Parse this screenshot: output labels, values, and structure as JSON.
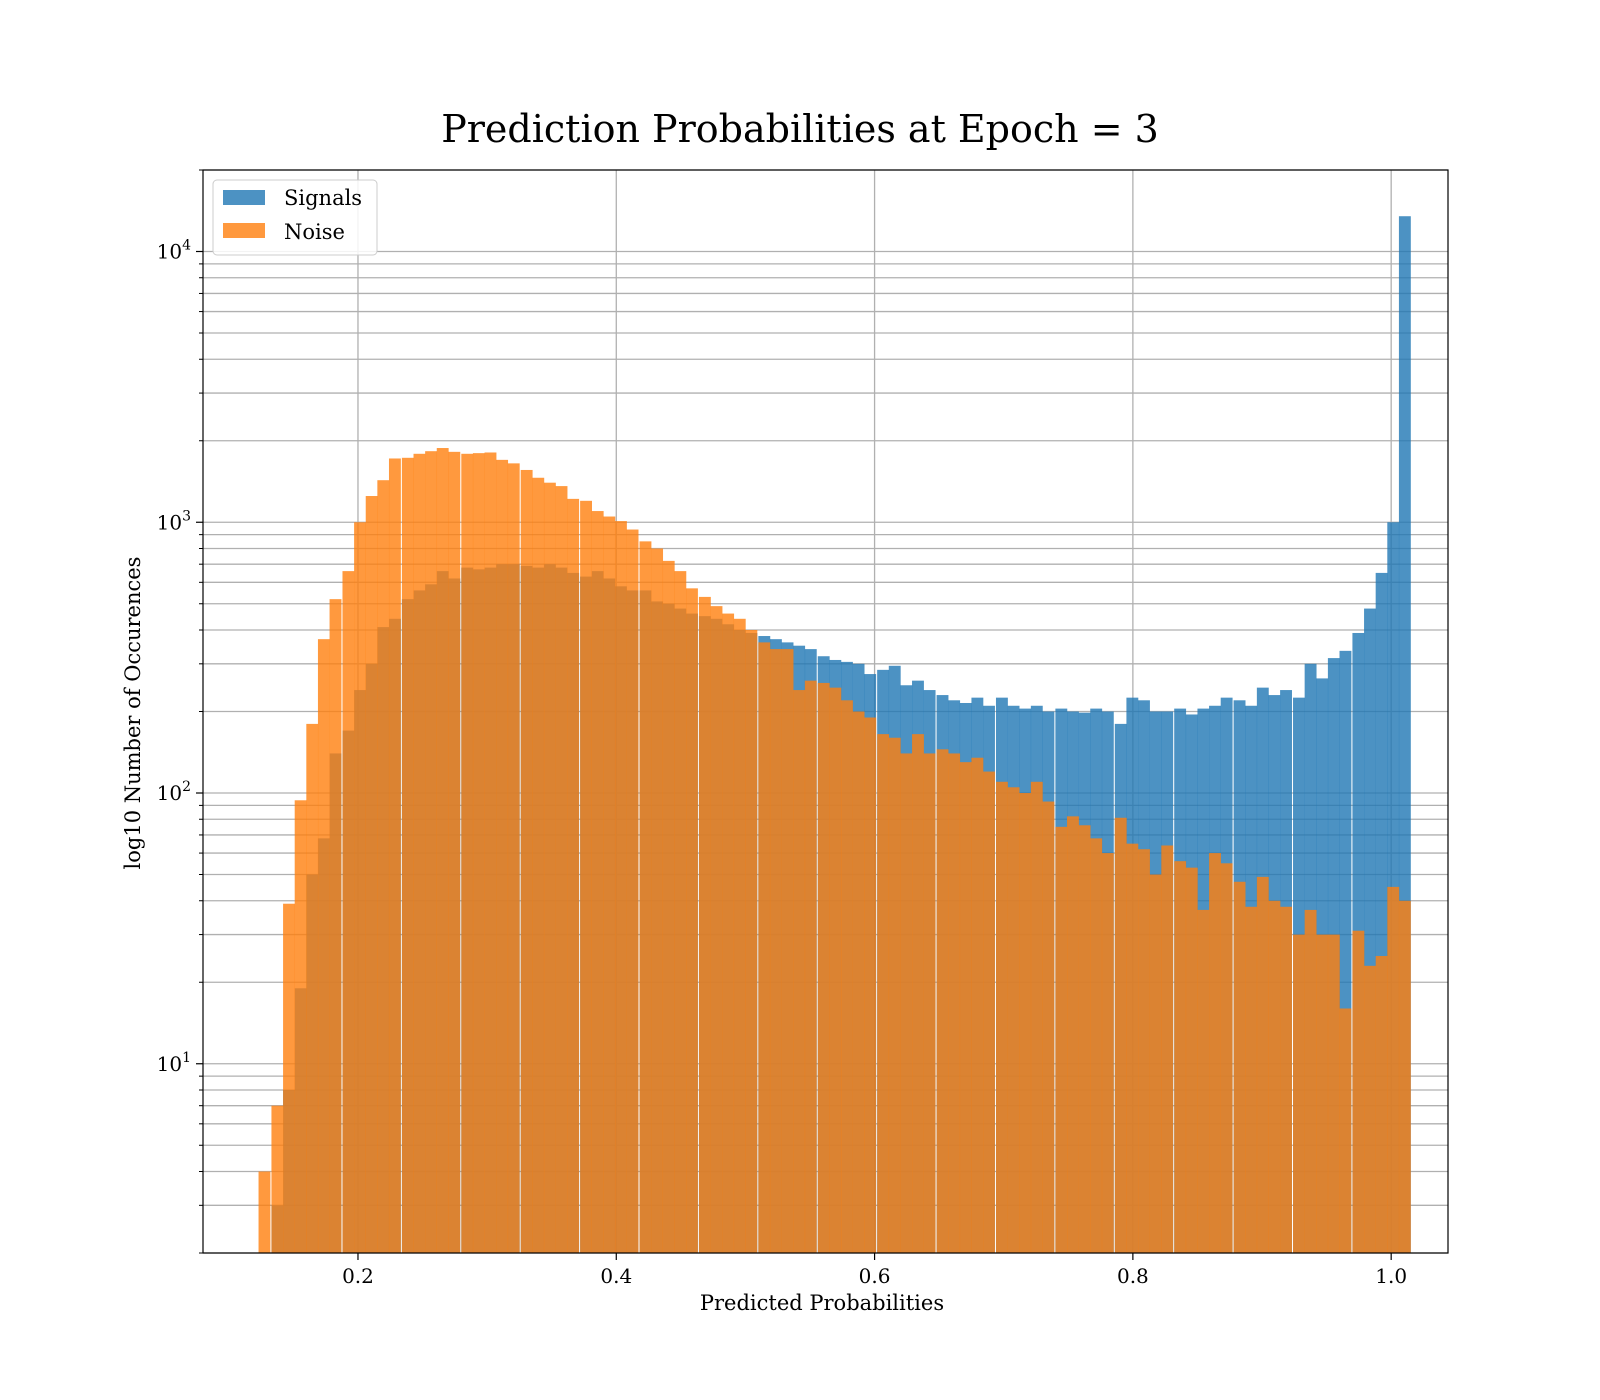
{
  "chart_data": {
    "type": "bar",
    "subtype": "histogram-overlaid",
    "title": "Prediction Probabilities at Epoch = 3",
    "xlabel": "Predicted Probabilities",
    "ylabel": "log10 Number of Occurences",
    "yscale": "log",
    "xlim": [
      0.08,
      1.044
    ],
    "ylim": [
      2,
      20000
    ],
    "xticks": [
      {
        "value": 0.2,
        "label": "0.2"
      },
      {
        "value": 0.4,
        "label": "0.4"
      },
      {
        "value": 0.6,
        "label": "0.6"
      },
      {
        "value": 0.8,
        "label": "0.8"
      },
      {
        "value": 1.0,
        "label": "1.0"
      }
    ],
    "yticks": [
      {
        "value": 10,
        "base": "10",
        "exp": "1"
      },
      {
        "value": 100,
        "base": "10",
        "exp": "2"
      },
      {
        "value": 1000,
        "base": "10",
        "exp": "3"
      },
      {
        "value": 10000,
        "base": "10",
        "exp": "4"
      }
    ],
    "grid": true,
    "legend_position": "top-left",
    "bin_width": 0.0092,
    "series": [
      {
        "name": "Signals",
        "color": "#1f77b4",
        "opacity": 0.8,
        "bins": [
          {
            "x0": 0.133,
            "y": 3
          },
          {
            "x0": 0.142,
            "y": 8
          },
          {
            "x0": 0.151,
            "y": 19
          },
          {
            "x0": 0.16,
            "y": 50
          },
          {
            "x0": 0.169,
            "y": 68
          },
          {
            "x0": 0.178,
            "y": 140
          },
          {
            "x0": 0.188,
            "y": 170
          },
          {
            "x0": 0.197,
            "y": 240
          },
          {
            "x0": 0.206,
            "y": 300
          },
          {
            "x0": 0.215,
            "y": 410
          },
          {
            "x0": 0.224,
            "y": 440
          },
          {
            "x0": 0.234,
            "y": 520
          },
          {
            "x0": 0.243,
            "y": 560
          },
          {
            "x0": 0.252,
            "y": 590
          },
          {
            "x0": 0.261,
            "y": 660
          },
          {
            "x0": 0.27,
            "y": 620
          },
          {
            "x0": 0.28,
            "y": 680
          },
          {
            "x0": 0.289,
            "y": 670
          },
          {
            "x0": 0.298,
            "y": 680
          },
          {
            "x0": 0.307,
            "y": 700
          },
          {
            "x0": 0.316,
            "y": 700
          },
          {
            "x0": 0.326,
            "y": 690
          },
          {
            "x0": 0.335,
            "y": 680
          },
          {
            "x0": 0.344,
            "y": 700
          },
          {
            "x0": 0.353,
            "y": 680
          },
          {
            "x0": 0.362,
            "y": 650
          },
          {
            "x0": 0.372,
            "y": 630
          },
          {
            "x0": 0.381,
            "y": 660
          },
          {
            "x0": 0.39,
            "y": 620
          },
          {
            "x0": 0.399,
            "y": 580
          },
          {
            "x0": 0.408,
            "y": 560
          },
          {
            "x0": 0.418,
            "y": 560
          },
          {
            "x0": 0.427,
            "y": 510
          },
          {
            "x0": 0.436,
            "y": 500
          },
          {
            "x0": 0.445,
            "y": 480
          },
          {
            "x0": 0.454,
            "y": 460
          },
          {
            "x0": 0.464,
            "y": 450
          },
          {
            "x0": 0.473,
            "y": 440
          },
          {
            "x0": 0.482,
            "y": 420
          },
          {
            "x0": 0.491,
            "y": 400
          },
          {
            "x0": 0.5,
            "y": 390
          },
          {
            "x0": 0.51,
            "y": 380
          },
          {
            "x0": 0.519,
            "y": 370
          },
          {
            "x0": 0.528,
            "y": 360
          },
          {
            "x0": 0.537,
            "y": 350
          },
          {
            "x0": 0.546,
            "y": 340
          },
          {
            "x0": 0.556,
            "y": 320
          },
          {
            "x0": 0.565,
            "y": 310
          },
          {
            "x0": 0.574,
            "y": 305
          },
          {
            "x0": 0.583,
            "y": 300
          },
          {
            "x0": 0.592,
            "y": 275
          },
          {
            "x0": 0.602,
            "y": 285
          },
          {
            "x0": 0.611,
            "y": 295
          },
          {
            "x0": 0.62,
            "y": 250
          },
          {
            "x0": 0.629,
            "y": 260
          },
          {
            "x0": 0.638,
            "y": 240
          },
          {
            "x0": 0.648,
            "y": 230
          },
          {
            "x0": 0.657,
            "y": 220
          },
          {
            "x0": 0.666,
            "y": 215
          },
          {
            "x0": 0.675,
            "y": 225
          },
          {
            "x0": 0.684,
            "y": 210
          },
          {
            "x0": 0.694,
            "y": 225
          },
          {
            "x0": 0.703,
            "y": 210
          },
          {
            "x0": 0.712,
            "y": 205
          },
          {
            "x0": 0.721,
            "y": 210
          },
          {
            "x0": 0.73,
            "y": 200
          },
          {
            "x0": 0.74,
            "y": 205
          },
          {
            "x0": 0.749,
            "y": 200
          },
          {
            "x0": 0.758,
            "y": 198
          },
          {
            "x0": 0.767,
            "y": 205
          },
          {
            "x0": 0.776,
            "y": 200
          },
          {
            "x0": 0.786,
            "y": 180
          },
          {
            "x0": 0.795,
            "y": 225
          },
          {
            "x0": 0.804,
            "y": 220
          },
          {
            "x0": 0.813,
            "y": 200
          },
          {
            "x0": 0.822,
            "y": 200
          },
          {
            "x0": 0.832,
            "y": 205
          },
          {
            "x0": 0.841,
            "y": 195
          },
          {
            "x0": 0.85,
            "y": 205
          },
          {
            "x0": 0.859,
            "y": 210
          },
          {
            "x0": 0.868,
            "y": 225
          },
          {
            "x0": 0.878,
            "y": 220
          },
          {
            "x0": 0.887,
            "y": 210
          },
          {
            "x0": 0.896,
            "y": 245
          },
          {
            "x0": 0.905,
            "y": 230
          },
          {
            "x0": 0.914,
            "y": 240
          },
          {
            "x0": 0.924,
            "y": 225
          },
          {
            "x0": 0.933,
            "y": 300
          },
          {
            "x0": 0.942,
            "y": 265
          },
          {
            "x0": 0.951,
            "y": 315
          },
          {
            "x0": 0.96,
            "y": 335
          },
          {
            "x0": 0.97,
            "y": 390
          },
          {
            "x0": 0.979,
            "y": 480
          },
          {
            "x0": 0.988,
            "y": 650
          },
          {
            "x0": 0.997,
            "y": 1000
          },
          {
            "x0": 1.006,
            "y": 13500
          }
        ]
      },
      {
        "name": "Noise",
        "color": "#ff7f0e",
        "opacity": 0.8,
        "bins": [
          {
            "x0": 0.123,
            "y": 4
          },
          {
            "x0": 0.133,
            "y": 7
          },
          {
            "x0": 0.142,
            "y": 39
          },
          {
            "x0": 0.151,
            "y": 94
          },
          {
            "x0": 0.16,
            "y": 180
          },
          {
            "x0": 0.169,
            "y": 370
          },
          {
            "x0": 0.178,
            "y": 520
          },
          {
            "x0": 0.188,
            "y": 660
          },
          {
            "x0": 0.197,
            "y": 1000
          },
          {
            "x0": 0.206,
            "y": 1250
          },
          {
            "x0": 0.215,
            "y": 1430
          },
          {
            "x0": 0.224,
            "y": 1720
          },
          {
            "x0": 0.234,
            "y": 1730
          },
          {
            "x0": 0.243,
            "y": 1790
          },
          {
            "x0": 0.252,
            "y": 1830
          },
          {
            "x0": 0.261,
            "y": 1880
          },
          {
            "x0": 0.27,
            "y": 1820
          },
          {
            "x0": 0.28,
            "y": 1790
          },
          {
            "x0": 0.289,
            "y": 1800
          },
          {
            "x0": 0.298,
            "y": 1810
          },
          {
            "x0": 0.307,
            "y": 1700
          },
          {
            "x0": 0.316,
            "y": 1650
          },
          {
            "x0": 0.326,
            "y": 1560
          },
          {
            "x0": 0.335,
            "y": 1460
          },
          {
            "x0": 0.344,
            "y": 1400
          },
          {
            "x0": 0.353,
            "y": 1360
          },
          {
            "x0": 0.362,
            "y": 1220
          },
          {
            "x0": 0.372,
            "y": 1200
          },
          {
            "x0": 0.381,
            "y": 1100
          },
          {
            "x0": 0.39,
            "y": 1050
          },
          {
            "x0": 0.399,
            "y": 1010
          },
          {
            "x0": 0.408,
            "y": 940
          },
          {
            "x0": 0.418,
            "y": 850
          },
          {
            "x0": 0.427,
            "y": 800
          },
          {
            "x0": 0.436,
            "y": 720
          },
          {
            "x0": 0.445,
            "y": 660
          },
          {
            "x0": 0.454,
            "y": 570
          },
          {
            "x0": 0.464,
            "y": 530
          },
          {
            "x0": 0.473,
            "y": 490
          },
          {
            "x0": 0.482,
            "y": 460
          },
          {
            "x0": 0.491,
            "y": 440
          },
          {
            "x0": 0.5,
            "y": 400
          },
          {
            "x0": 0.51,
            "y": 360
          },
          {
            "x0": 0.519,
            "y": 340
          },
          {
            "x0": 0.528,
            "y": 340
          },
          {
            "x0": 0.537,
            "y": 240
          },
          {
            "x0": 0.546,
            "y": 260
          },
          {
            "x0": 0.556,
            "y": 255
          },
          {
            "x0": 0.565,
            "y": 245
          },
          {
            "x0": 0.574,
            "y": 220
          },
          {
            "x0": 0.583,
            "y": 200
          },
          {
            "x0": 0.592,
            "y": 190
          },
          {
            "x0": 0.602,
            "y": 165
          },
          {
            "x0": 0.611,
            "y": 160
          },
          {
            "x0": 0.62,
            "y": 140
          },
          {
            "x0": 0.629,
            "y": 165
          },
          {
            "x0": 0.638,
            "y": 140
          },
          {
            "x0": 0.648,
            "y": 145
          },
          {
            "x0": 0.657,
            "y": 140
          },
          {
            "x0": 0.666,
            "y": 130
          },
          {
            "x0": 0.675,
            "y": 135
          },
          {
            "x0": 0.684,
            "y": 120
          },
          {
            "x0": 0.694,
            "y": 110
          },
          {
            "x0": 0.703,
            "y": 105
          },
          {
            "x0": 0.712,
            "y": 100
          },
          {
            "x0": 0.721,
            "y": 110
          },
          {
            "x0": 0.73,
            "y": 93
          },
          {
            "x0": 0.74,
            "y": 75
          },
          {
            "x0": 0.749,
            "y": 82
          },
          {
            "x0": 0.758,
            "y": 76
          },
          {
            "x0": 0.767,
            "y": 68
          },
          {
            "x0": 0.776,
            "y": 60
          },
          {
            "x0": 0.786,
            "y": 81
          },
          {
            "x0": 0.795,
            "y": 65
          },
          {
            "x0": 0.804,
            "y": 62
          },
          {
            "x0": 0.813,
            "y": 50
          },
          {
            "x0": 0.822,
            "y": 64
          },
          {
            "x0": 0.832,
            "y": 56
          },
          {
            "x0": 0.841,
            "y": 53
          },
          {
            "x0": 0.85,
            "y": 37
          },
          {
            "x0": 0.859,
            "y": 60
          },
          {
            "x0": 0.868,
            "y": 55
          },
          {
            "x0": 0.878,
            "y": 47
          },
          {
            "x0": 0.887,
            "y": 38
          },
          {
            "x0": 0.896,
            "y": 49
          },
          {
            "x0": 0.905,
            "y": 40
          },
          {
            "x0": 0.914,
            "y": 38
          },
          {
            "x0": 0.924,
            "y": 30
          },
          {
            "x0": 0.933,
            "y": 37
          },
          {
            "x0": 0.942,
            "y": 30
          },
          {
            "x0": 0.951,
            "y": 30
          },
          {
            "x0": 0.96,
            "y": 16
          },
          {
            "x0": 0.97,
            "y": 31
          },
          {
            "x0": 0.979,
            "y": 23
          },
          {
            "x0": 0.988,
            "y": 25
          },
          {
            "x0": 0.997,
            "y": 45
          },
          {
            "x0": 1.006,
            "y": 40
          }
        ]
      }
    ]
  }
}
